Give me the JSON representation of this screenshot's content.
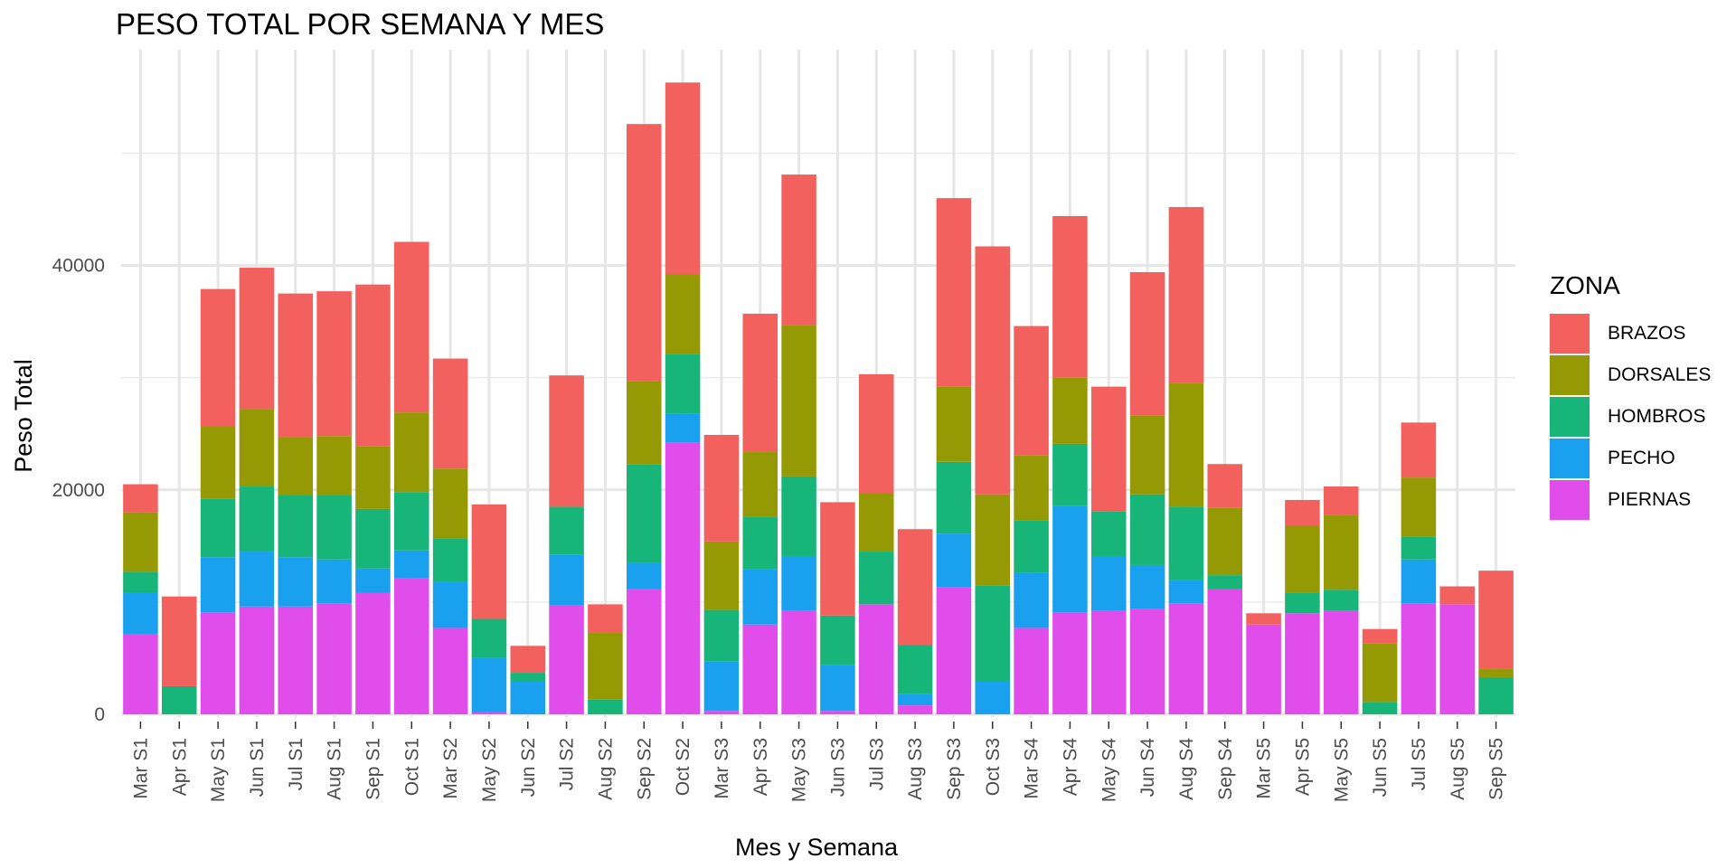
{
  "chart_data": {
    "type": "bar",
    "stacked": true,
    "title": "PESO TOTAL POR SEMANA Y MES",
    "xlabel": "Mes y Semana",
    "ylabel": "Peso Total",
    "ylim": [
      0,
      56000
    ],
    "yticks": [
      0,
      20000,
      40000
    ],
    "ytick_labels": [
      "0",
      "20000",
      "40000"
    ],
    "grid": true,
    "legend": {
      "title": "ZONA",
      "position": "right"
    },
    "categories": [
      "Mar S1",
      "Apr S1",
      "May S1",
      "Jun S1",
      "Jul S1",
      "Aug S1",
      "Sep S1",
      "Oct S1",
      "Mar S2",
      "May S2",
      "Jun S2",
      "Jul S2",
      "Aug S2",
      "Sep S2",
      "Oct S2",
      "Mar S3",
      "Apr S3",
      "May S3",
      "Jun S3",
      "Jul S3",
      "Aug S3",
      "Sep S3",
      "Oct S3",
      "Mar S4",
      "Apr S4",
      "May S4",
      "Jun S4",
      "Aug S4",
      "Sep S4",
      "Mar S5",
      "Apr S5",
      "May S5",
      "Jun S5",
      "Jul S5",
      "Aug S5",
      "Sep S5"
    ],
    "series": [
      {
        "name": "PIERNAS",
        "color": "#E04DEB",
        "values": [
          7100,
          0,
          9100,
          9600,
          9600,
          9900,
          10800,
          12100,
          7700,
          200,
          0,
          9700,
          0,
          11200,
          24200,
          300,
          8000,
          9200,
          300,
          9800,
          800,
          11300,
          0,
          7700,
          9100,
          9200,
          9400,
          9900,
          11200,
          8000,
          9000,
          9200,
          0,
          9900,
          9800,
          0
        ]
      },
      {
        "name": "PECHO",
        "color": "#19A0EE",
        "values": [
          3700,
          0,
          4900,
          4900,
          4400,
          3900,
          2200,
          2500,
          4100,
          4800,
          2900,
          4500,
          0,
          2300,
          2600,
          4400,
          4900,
          4900,
          4100,
          0,
          1000,
          4800,
          2900,
          4900,
          9500,
          4900,
          3900,
          2100,
          0,
          0,
          0,
          0,
          0,
          3900,
          0,
          0
        ]
      },
      {
        "name": "HOMBROS",
        "color": "#18B57A",
        "values": [
          1900,
          2500,
          5200,
          5800,
          5500,
          5700,
          5300,
          5200,
          3900,
          3500,
          800,
          4300,
          1300,
          8800,
          5300,
          4600,
          4700,
          7100,
          4400,
          4700,
          4400,
          6400,
          8600,
          4700,
          5500,
          4000,
          6300,
          6500,
          1200,
          0,
          1800,
          1900,
          1100,
          2000,
          0,
          3300
        ]
      },
      {
        "name": "DORSALES",
        "color": "#959A04",
        "values": [
          5300,
          0,
          6500,
          6900,
          5200,
          5300,
          5600,
          7100,
          6200,
          0,
          0,
          0,
          6000,
          7400,
          7100,
          6100,
          5800,
          13500,
          0,
          5200,
          0,
          6700,
          8100,
          5800,
          5900,
          0,
          7000,
          11000,
          6000,
          0,
          6000,
          6700,
          5200,
          5300,
          0,
          800
        ]
      },
      {
        "name": "BRAZOS",
        "color": "#F2615E",
        "values": [
          2500,
          8000,
          12200,
          12600,
          12800,
          12900,
          14400,
          15200,
          9800,
          10200,
          2400,
          11700,
          2500,
          22900,
          17100,
          9500,
          12300,
          13400,
          10100,
          10600,
          10300,
          16800,
          22100,
          11500,
          14400,
          11100,
          12800,
          15700,
          3900,
          1000,
          2300,
          2500,
          1300,
          4900,
          1600,
          8700
        ]
      }
    ]
  }
}
